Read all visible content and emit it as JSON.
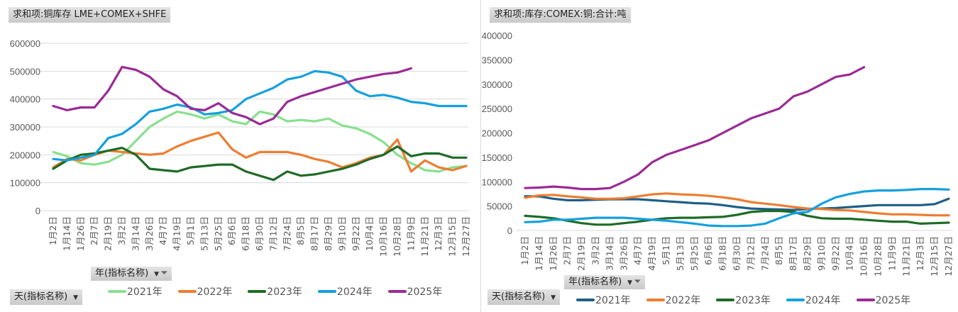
{
  "x_labels": [
    "1月2日",
    "1月14日",
    "1月26日",
    "2月7日",
    "2月19日",
    "3月2日",
    "3月14日",
    "3月26日",
    "4月7日",
    "4月19日",
    "5月1日",
    "5月13日",
    "5月25日",
    "6月6日",
    "6月18日",
    "6月30日",
    "7月12日",
    "7月24日",
    "8月5日",
    "8月17日",
    "8月29日",
    "9月10日",
    "9月22日",
    "10月4日",
    "10月16日",
    "10月28日",
    "11月9日",
    "11月21日",
    "12月3日",
    "12月15日",
    "12月27日"
  ],
  "controls": {
    "year_field": "年(指标名称)",
    "day_field": "天(指标名称)"
  },
  "chart_data": [
    {
      "type": "line",
      "title": "求和项:铜库存 LME+COMEX+SHFE",
      "ylim": [
        0,
        600000
      ],
      "yticks": [
        0,
        100000,
        200000,
        300000,
        400000,
        500000,
        600000
      ],
      "grid": true,
      "legend": "bottom",
      "series": [
        {
          "name": "2021年",
          "color": "#88e08e",
          "values": [
            210000,
            195000,
            170000,
            165000,
            175000,
            200000,
            250000,
            300000,
            330000,
            355000,
            345000,
            330000,
            345000,
            320000,
            310000,
            355000,
            345000,
            320000,
            325000,
            320000,
            330000,
            305000,
            295000,
            275000,
            245000,
            200000,
            170000,
            145000,
            140000,
            155000,
            160000
          ]
        },
        {
          "name": "2022年",
          "color": "#ed7d31",
          "values": [
            155000,
            185000,
            180000,
            200000,
            215000,
            210000,
            205000,
            200000,
            205000,
            230000,
            250000,
            265000,
            280000,
            220000,
            190000,
            210000,
            210000,
            210000,
            200000,
            185000,
            175000,
            155000,
            170000,
            190000,
            200000,
            255000,
            140000,
            180000,
            155000,
            145000,
            160000
          ]
        },
        {
          "name": "2023年",
          "color": "#1e6b25",
          "values": [
            150000,
            180000,
            200000,
            205000,
            215000,
            225000,
            200000,
            150000,
            145000,
            140000,
            155000,
            160000,
            165000,
            165000,
            140000,
            125000,
            110000,
            140000,
            125000,
            130000,
            140000,
            150000,
            165000,
            185000,
            200000,
            230000,
            195000,
            205000,
            205000,
            190000,
            190000
          ]
        },
        {
          "name": "2024年",
          "color": "#15a0dc",
          "values": [
            185000,
            180000,
            190000,
            200000,
            260000,
            275000,
            310000,
            355000,
            365000,
            380000,
            370000,
            345000,
            350000,
            360000,
            400000,
            420000,
            440000,
            470000,
            480000,
            500000,
            495000,
            480000,
            430000,
            410000,
            415000,
            405000,
            390000,
            385000,
            375000,
            375000,
            375000
          ]
        },
        {
          "name": "2025年",
          "color": "#9b2b94",
          "values": [
            375000,
            360000,
            370000,
            370000,
            430000,
            515000,
            505000,
            480000,
            435000,
            410000,
            365000,
            360000,
            385000,
            350000,
            335000,
            310000,
            330000,
            390000,
            410000,
            425000,
            440000,
            455000,
            470000,
            480000,
            490000,
            495000,
            510000
          ]
        }
      ]
    },
    {
      "type": "line",
      "title": "求和项:库存:COMEX:铜:合计:吨",
      "ylim": [
        0,
        400000
      ],
      "yticks": [
        0,
        50000,
        100000,
        150000,
        200000,
        250000,
        300000,
        350000,
        400000
      ],
      "grid": false,
      "legend": "bottom",
      "series": [
        {
          "name": "2021年",
          "color": "#1f5f86",
          "values": [
            70000,
            70000,
            65000,
            62000,
            62000,
            63000,
            64000,
            64000,
            64000,
            62000,
            60000,
            58000,
            56000,
            55000,
            52000,
            48000,
            45000,
            44000,
            43000,
            42000,
            44000,
            45000,
            46000,
            48000,
            50000,
            52000,
            52000,
            52000,
            52000,
            54000,
            65000
          ]
        },
        {
          "name": "2022年",
          "color": "#ed7d31",
          "values": [
            67000,
            72000,
            73000,
            70000,
            68000,
            65000,
            65000,
            66000,
            70000,
            74000,
            76000,
            74000,
            73000,
            71000,
            68000,
            64000,
            58000,
            55000,
            52000,
            48000,
            45000,
            44000,
            42000,
            41000,
            38000,
            35000,
            33000,
            33000,
            32000,
            31000,
            31000
          ]
        },
        {
          "name": "2023年",
          "color": "#1e6b25",
          "values": [
            30000,
            28000,
            25000,
            20000,
            15000,
            12000,
            12000,
            15000,
            18000,
            22000,
            25000,
            26000,
            26000,
            27000,
            28000,
            32000,
            38000,
            40000,
            40000,
            38000,
            30000,
            25000,
            24000,
            24000,
            22000,
            20000,
            18000,
            18000,
            14000,
            15000,
            16000
          ]
        },
        {
          "name": "2024年",
          "color": "#15a0dc",
          "values": [
            17000,
            18000,
            22000,
            22000,
            24000,
            26000,
            26000,
            26000,
            24000,
            22000,
            20000,
            17000,
            14000,
            10000,
            9000,
            9000,
            10000,
            14000,
            25000,
            35000,
            38000,
            55000,
            68000,
            75000,
            80000,
            82000,
            82000,
            83000,
            85000,
            85000,
            84000
          ]
        },
        {
          "name": "2025年",
          "color": "#9b2b94",
          "values": [
            87000,
            88000,
            90000,
            88000,
            85000,
            85000,
            87000,
            100000,
            115000,
            140000,
            155000,
            165000,
            175000,
            185000,
            200000,
            215000,
            230000,
            240000,
            250000,
            275000,
            285000,
            300000,
            315000,
            320000,
            335000
          ]
        }
      ]
    }
  ]
}
